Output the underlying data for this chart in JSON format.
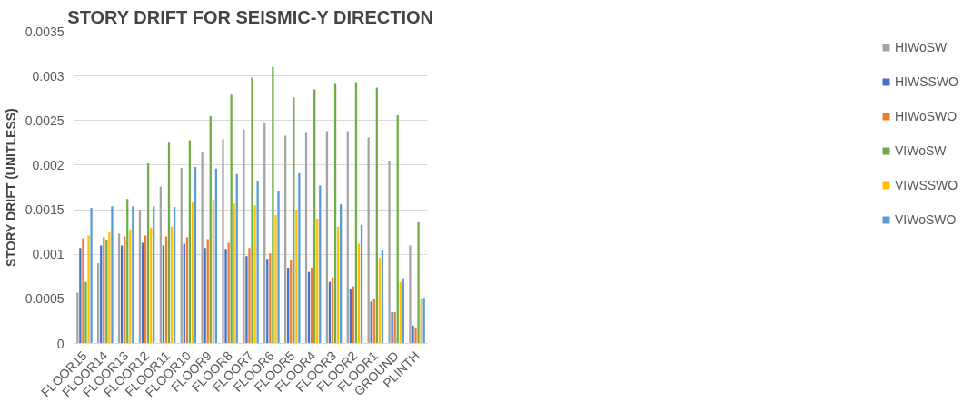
{
  "chart_data": {
    "type": "bar",
    "title": "STORY DRIFT FOR SEISMIC-Y DIRECTION",
    "ylabel": "STORY DRIFT (UNITLESS)",
    "categories": [
      "FLOOR15",
      "FLOOR14",
      "FLOOR13",
      "FLOOR12",
      "FLOOR11",
      "FLOOR10",
      "FLOOR9",
      "FLOOR8",
      "FLOOR7",
      "FLOOR6",
      "FLOOR5",
      "FLOOR4",
      "FLOOR3",
      "FLOOR2",
      "FLOOR1",
      "GROUND",
      "PLINTH"
    ],
    "series": [
      {
        "name": "HIWoSW",
        "color": "#a5a5a5",
        "values": [
          0.00057,
          0.0009,
          0.00123,
          0.0015,
          0.00176,
          0.00197,
          0.00215,
          0.00229,
          0.0024,
          0.00248,
          0.00233,
          0.00236,
          0.00238,
          0.00238,
          0.00231,
          0.00205,
          0.0011
        ]
      },
      {
        "name": "HIWSSWO",
        "color": "#4472c4",
        "values": [
          0.00107,
          0.0011,
          0.0011,
          0.00113,
          0.0011,
          0.00112,
          0.00107,
          0.00106,
          0.00098,
          0.00095,
          0.00085,
          0.0008,
          0.00069,
          0.00061,
          0.00047,
          0.00035,
          0.0002
        ]
      },
      {
        "name": "HIWoSWO",
        "color": "#ed7d31",
        "values": [
          0.00118,
          0.00119,
          0.0012,
          0.00121,
          0.0012,
          0.00119,
          0.00117,
          0.00113,
          0.00107,
          0.00101,
          0.00093,
          0.00085,
          0.00074,
          0.00064,
          0.0005,
          0.00035,
          0.00018
        ]
      },
      {
        "name": "VIWoSW",
        "color": "#70ad47",
        "values": [
          0.00069,
          0.00116,
          0.00162,
          0.00202,
          0.00225,
          0.00228,
          0.00255,
          0.00279,
          0.00298,
          0.0031,
          0.00276,
          0.00285,
          0.00291,
          0.00293,
          0.00287,
          0.00256,
          0.00136
        ]
      },
      {
        "name": "VIWSSWO",
        "color": "#ffc000",
        "values": [
          0.00121,
          0.00125,
          0.00128,
          0.0013,
          0.00131,
          0.00158,
          0.00161,
          0.00157,
          0.00155,
          0.00144,
          0.0015,
          0.0014,
          0.00131,
          0.00112,
          0.00096,
          0.00069,
          0.0005
        ]
      },
      {
        "name": "VIWoSWO",
        "color": "#5b9bd5",
        "values": [
          0.00152,
          0.00154,
          0.00154,
          0.00154,
          0.00153,
          0.00198,
          0.00196,
          0.0019,
          0.00182,
          0.00171,
          0.00191,
          0.00177,
          0.00156,
          0.00133,
          0.00105,
          0.00073,
          0.00051
        ]
      }
    ],
    "ylim": [
      0,
      0.0035
    ],
    "yticks": [
      0,
      0.0005,
      0.001,
      0.0015,
      0.002,
      0.0025,
      0.003,
      0.0035
    ],
    "grid": "y",
    "legend": "right"
  }
}
